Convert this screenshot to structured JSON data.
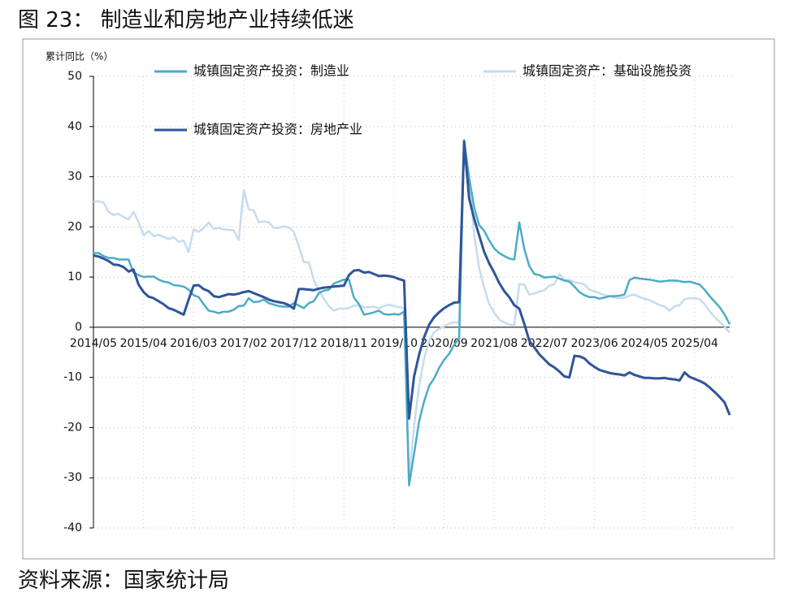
{
  "title": "图 23： 制造业和房地产业持续低迷",
  "source": "资料来源：国家统计局",
  "chart_data": {
    "type": "line",
    "y_label": "累计同比（%）",
    "ylim": [
      -40,
      50
    ],
    "yticks": [
      -40,
      -30,
      -20,
      -10,
      0,
      10,
      20,
      30,
      40,
      50
    ],
    "grid": true,
    "legend": "top",
    "categories": [
      "2014/05",
      null,
      null,
      null,
      null,
      null,
      null,
      null,
      null,
      null,
      "2015/04",
      null,
      null,
      null,
      null,
      null,
      null,
      null,
      null,
      null,
      "2016/03",
      null,
      null,
      null,
      null,
      null,
      null,
      null,
      null,
      null,
      "2017/02",
      null,
      null,
      null,
      null,
      null,
      null,
      null,
      null,
      null,
      "2017/12",
      null,
      null,
      null,
      null,
      null,
      null,
      null,
      null,
      null,
      "2018/11",
      null,
      null,
      null,
      null,
      null,
      null,
      null,
      null,
      null,
      "2019/10",
      null,
      null,
      null,
      null,
      null,
      null,
      null,
      null,
      null,
      "2020/09",
      null,
      null,
      null,
      null,
      null,
      null,
      null,
      null,
      null,
      "2021/08",
      null,
      null,
      null,
      null,
      null,
      null,
      null,
      null,
      null,
      "2022/07",
      null,
      null,
      null,
      null,
      null,
      null,
      null,
      null,
      null,
      "2023/06",
      null,
      null,
      null,
      null,
      null,
      null,
      null,
      null,
      null,
      "2024/05",
      null,
      null,
      null,
      null,
      null,
      null,
      null,
      null,
      null,
      "2025/04",
      null,
      null,
      null,
      null,
      null,
      null,
      null
    ],
    "series": [
      {
        "name": "城镇固定资产投资：制造业",
        "color": "#4bacc6",
        "values": [
          14.8,
          14.8,
          14.2,
          13.8,
          13.8,
          13.5,
          13.5,
          13.5,
          10.9,
          10.4,
          10.0,
          10.1,
          10.1,
          9.5,
          9.1,
          8.9,
          8.4,
          8.3,
          8.1,
          7.5,
          6.4,
          6.0,
          4.6,
          3.3,
          3.1,
          2.8,
          3.1,
          3.1,
          3.5,
          4.2,
          4.3,
          5.8,
          5.0,
          5.1,
          5.5,
          4.8,
          4.5,
          4.2,
          4.1,
          4.1,
          4.8,
          4.3,
          3.8,
          4.8,
          5.2,
          6.8,
          7.3,
          7.5,
          8.7,
          9.1,
          9.5,
          9.5,
          5.9,
          4.6,
          2.5,
          2.7,
          3.0,
          3.3,
          2.6,
          2.5,
          2.6,
          2.5,
          3.1,
          -31.5,
          -25.2,
          -18.8,
          -14.8,
          -11.7,
          -10.2,
          -8.1,
          -6.5,
          -5.3,
          -3.5,
          -2.2,
          37.3,
          29.8,
          23.8,
          20.4,
          19.2,
          17.3,
          15.7,
          14.8,
          14.2,
          13.7,
          13.5,
          20.9,
          15.6,
          12.2,
          10.6,
          10.4,
          9.9,
          10.0,
          10.1,
          9.7,
          9.3,
          9.1,
          8.1,
          7.0,
          6.4,
          6.0,
          6.0,
          5.7,
          5.9,
          6.2,
          6.2,
          6.3,
          6.5,
          9.4,
          9.9,
          9.7,
          9.6,
          9.5,
          9.3,
          9.1,
          9.2,
          9.3,
          9.3,
          9.2,
          9.0,
          9.1,
          8.8,
          8.5,
          7.5,
          6.2,
          5.1,
          4.0,
          2.5,
          0.6
        ]
      },
      {
        "name": "城镇固定资产：基础设施投资",
        "color": "#c6dbef",
        "values": [
          25.0,
          25.1,
          24.9,
          23.0,
          22.4,
          22.6,
          22.0,
          21.5,
          23.0,
          21.0,
          18.3,
          19.2,
          18.2,
          18.4,
          18.0,
          17.6,
          18.0,
          17.0,
          17.3,
          15.0,
          19.5,
          19.0,
          19.8,
          20.9,
          19.6,
          19.8,
          19.5,
          19.4,
          19.3,
          17.4,
          27.3,
          23.5,
          23.3,
          20.9,
          21.1,
          20.9,
          19.8,
          19.8,
          20.1,
          19.9,
          19.0,
          16.1,
          13.0,
          12.9,
          9.4,
          7.3,
          5.7,
          4.2,
          3.3,
          3.7,
          3.7,
          3.8,
          4.3,
          4.4,
          4.0,
          4.0,
          4.1,
          3.8,
          4.2,
          4.5,
          4.2,
          4.0,
          3.8,
          -30.3,
          -19.7,
          -11.8,
          -6.3,
          -2.7,
          -1.0,
          -0.3,
          0.2,
          0.7,
          1.0,
          0.9,
          36.6,
          29.7,
          18.4,
          11.8,
          7.8,
          4.6,
          2.9,
          1.5,
          1.0,
          0.5,
          0.4,
          8.6,
          8.5,
          6.5,
          6.7,
          7.1,
          7.4,
          8.3,
          8.6,
          10.6,
          9.4,
          9.4,
          9.0,
          8.8,
          8.5,
          7.5,
          7.2,
          6.8,
          6.4,
          6.2,
          5.9,
          5.8,
          5.9,
          6.3,
          6.5,
          6.0,
          5.7,
          5.4,
          4.9,
          4.4,
          4.1,
          3.3,
          4.2,
          4.4,
          5.6,
          5.8,
          5.8,
          5.6,
          4.6,
          3.2,
          2.0,
          1.1,
          0.1,
          -1.1
        ]
      },
      {
        "name": "城镇固定资产投资：房地产业",
        "color": "#2f5597",
        "values": [
          14.3,
          14.1,
          13.7,
          13.2,
          12.5,
          12.4,
          12.0,
          11.1,
          11.5,
          8.5,
          7.0,
          6.1,
          5.8,
          5.2,
          4.6,
          3.8,
          3.5,
          3.0,
          2.5,
          5.5,
          8.3,
          8.4,
          7.6,
          7.2,
          6.2,
          6.0,
          6.3,
          6.6,
          6.5,
          6.7,
          7.0,
          7.2,
          6.8,
          6.4,
          6.0,
          5.5,
          5.2,
          5.0,
          4.8,
          4.4,
          3.7,
          7.6,
          7.6,
          7.5,
          7.4,
          7.7,
          7.9,
          8.0,
          8.1,
          8.2,
          8.3,
          10.4,
          11.3,
          11.4,
          10.9,
          11.0,
          10.6,
          10.2,
          10.3,
          10.2,
          10.0,
          9.6,
          9.3,
          -18.2,
          -9.8,
          -5.5,
          -2.0,
          0.5,
          2.0,
          3.0,
          3.8,
          4.4,
          4.9,
          5.0,
          37.0,
          25.6,
          21.6,
          18.3,
          15.0,
          12.7,
          10.9,
          8.8,
          7.2,
          6.0,
          4.4,
          3.7,
          0.7,
          -2.7,
          -4.0,
          -5.4,
          -6.4,
          -7.4,
          -8.0,
          -8.8,
          -9.8,
          -10.0,
          -5.7,
          -5.8,
          -6.2,
          -7.2,
          -7.9,
          -8.5,
          -8.8,
          -9.1,
          -9.3,
          -9.4,
          -9.6,
          -9.0,
          -9.5,
          -9.8,
          -10.1,
          -10.1,
          -10.2,
          -10.2,
          -10.1,
          -10.3,
          -10.4,
          -10.6,
          -9.0,
          -9.9,
          -10.3,
          -10.7,
          -11.2,
          -12.0,
          -12.9,
          -13.9,
          -15.0,
          -17.5
        ]
      }
    ]
  }
}
